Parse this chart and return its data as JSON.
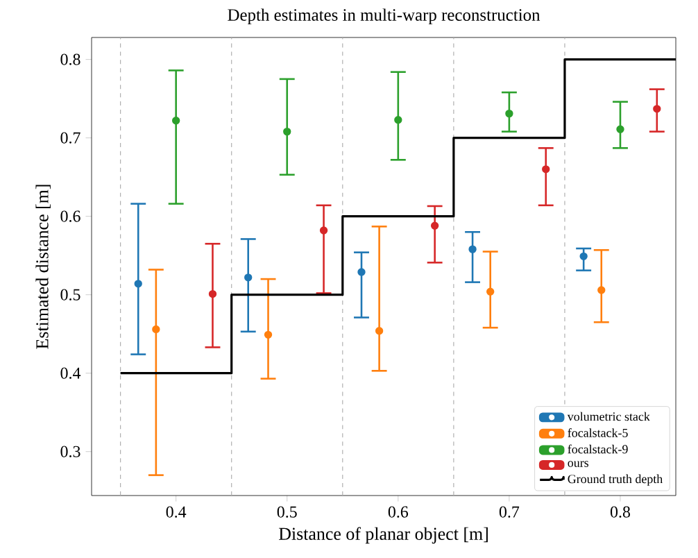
{
  "chart_data": {
    "type": "scatter",
    "title": "Depth estimates in multi-warp reconstruction",
    "xlabel": "Distance of planar object [m]",
    "ylabel": "Estimated distance [m]",
    "xlim": [
      0.324,
      0.85
    ],
    "ylim": [
      0.244,
      0.828
    ],
    "xticks": [
      0.4,
      0.5,
      0.6,
      0.7,
      0.8
    ],
    "yticks": [
      0.3,
      0.4,
      0.5,
      0.6,
      0.7,
      0.8
    ],
    "legend": "bottom right",
    "ref_lines": [
      {
        "axis": "x",
        "value": 0.35,
        "color": "#b0b0b0",
        "line_style": "dashed"
      },
      {
        "axis": "x",
        "value": 0.45,
        "color": "#b0b0b0",
        "line_style": "dashed"
      },
      {
        "axis": "x",
        "value": 0.55,
        "color": "#b0b0b0",
        "line_style": "dashed"
      },
      {
        "axis": "x",
        "value": 0.65,
        "color": "#b0b0b0",
        "line_style": "dashed"
      },
      {
        "axis": "x",
        "value": 0.75,
        "color": "#b0b0b0",
        "line_style": "dashed"
      }
    ],
    "series": [
      {
        "name": "volumetric stack",
        "color": "#1f77b4",
        "marker": "circle",
        "x": [
          0.366,
          0.465,
          0.567,
          0.667,
          0.767
        ],
        "values": [
          0.514,
          0.522,
          0.529,
          0.558,
          0.549
        ],
        "errors": [
          [
            0.424,
            0.616
          ],
          [
            0.453,
            0.571
          ],
          [
            0.471,
            0.554
          ],
          [
            0.516,
            0.58
          ],
          [
            0.531,
            0.559
          ]
        ]
      },
      {
        "name": "focalstack-5",
        "color": "#ff7f0e",
        "marker": "circle",
        "x": [
          0.382,
          0.483,
          0.583,
          0.683,
          0.783
        ],
        "values": [
          0.456,
          0.449,
          0.454,
          0.504,
          0.506
        ],
        "errors": [
          [
            0.27,
            0.532
          ],
          [
            0.393,
            0.52
          ],
          [
            0.403,
            0.587
          ],
          [
            0.458,
            0.555
          ],
          [
            0.465,
            0.557
          ]
        ]
      },
      {
        "name": "focalstack-9",
        "color": "#2ca02c",
        "marker": "circle",
        "x": [
          0.4,
          0.5,
          0.6,
          0.7,
          0.8
        ],
        "values": [
          0.722,
          0.708,
          0.723,
          0.731,
          0.711
        ],
        "errors": [
          [
            0.616,
            0.786
          ],
          [
            0.653,
            0.775
          ],
          [
            0.672,
            0.784
          ],
          [
            0.708,
            0.758
          ],
          [
            0.687,
            0.746
          ]
        ]
      },
      {
        "name": "ours",
        "color": "#d62728",
        "marker": "circle",
        "x": [
          0.433,
          0.533,
          0.633,
          0.733,
          0.833
        ],
        "values": [
          0.501,
          0.582,
          0.588,
          0.66,
          0.737
        ],
        "errors": [
          [
            0.433,
            0.565
          ],
          [
            0.502,
            0.614
          ],
          [
            0.541,
            0.613
          ],
          [
            0.614,
            0.687
          ],
          [
            0.708,
            0.762
          ]
        ]
      },
      {
        "name": "Ground truth depth",
        "type": "step",
        "color": "#000000",
        "x": [
          0.35,
          0.45,
          0.55,
          0.65,
          0.75,
          0.85
        ],
        "values": [
          0.4,
          0.5,
          0.6,
          0.7,
          0.8,
          0.8
        ]
      }
    ]
  }
}
